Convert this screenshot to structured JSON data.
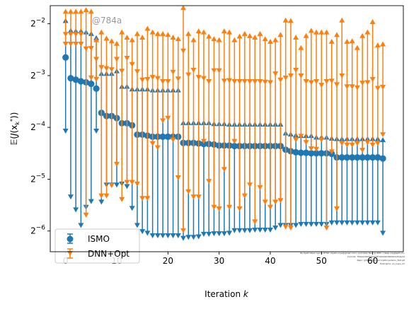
{
  "chart_data": {
    "type": "errorbar",
    "title": "",
    "xlabel": "Iteration k",
    "ylabel": "E(J(x_k*))",
    "xlim": [
      -3,
      66
    ],
    "ylog2_range": [
      -6.4,
      -1.65
    ],
    "xticks": [
      0,
      10,
      20,
      30,
      40,
      50,
      60
    ],
    "yticks": [
      {
        "exp": -2,
        "base": "2",
        "power": "−2"
      },
      {
        "exp": -3,
        "base": "2",
        "power": "−3"
      },
      {
        "exp": -4,
        "base": "2",
        "power": "−4"
      },
      {
        "exp": -5,
        "base": "2",
        "power": "−5"
      },
      {
        "exp": -6,
        "base": "2",
        "power": "−6"
      }
    ],
    "grid": false,
    "legend_position": "lower-left",
    "annotation": "@784a",
    "credit_lines": [
      "By Kjetil Olsen Lye @ ETHZ <kjetil.o.lye@gmail.com> and Ozzy Mog @ EPFL <deep.ozy@epfl.ch>",
      "Commit: 784ae18074814d3f72b3a9d39b667a7b4e4d",
      "Repo: git@github.com:kjetil-lye/ismo_fast.git",
      "Hostname: eu_login_27"
    ],
    "series": [
      {
        "name": "ISMO",
        "color": "#1f77b4",
        "marker": "circle",
        "x": [
          0,
          1,
          2,
          3,
          4,
          5,
          6,
          7,
          8,
          9,
          10,
          11,
          12,
          13,
          14,
          15,
          16,
          17,
          18,
          19,
          20,
          21,
          22,
          23,
          24,
          25,
          26,
          27,
          28,
          29,
          30,
          31,
          32,
          33,
          34,
          35,
          36,
          37,
          38,
          39,
          40,
          41,
          42,
          43,
          44,
          45,
          46,
          47,
          48,
          49,
          50,
          51,
          52,
          53,
          54,
          55,
          56,
          57,
          58,
          59,
          60,
          61,
          62
        ],
        "mean_log2": [
          -2.65,
          -3.05,
          -3.08,
          -3.11,
          -3.13,
          -3.16,
          -3.25,
          -3.72,
          -3.78,
          -3.78,
          -3.82,
          -3.92,
          -3.92,
          -3.96,
          -4.14,
          -4.14,
          -4.16,
          -4.18,
          -4.18,
          -4.18,
          -4.18,
          -4.18,
          -4.18,
          -4.3,
          -4.3,
          -4.3,
          -4.31,
          -4.32,
          -4.32,
          -4.33,
          -4.35,
          -4.35,
          -4.35,
          -4.36,
          -4.36,
          -4.36,
          -4.36,
          -4.36,
          -4.36,
          -4.36,
          -4.36,
          -4.36,
          -4.36,
          -4.43,
          -4.46,
          -4.48,
          -4.49,
          -4.49,
          -4.5,
          -4.5,
          -4.5,
          -4.5,
          -4.51,
          -4.58,
          -4.58,
          -4.58,
          -4.58,
          -4.58,
          -4.58,
          -4.58,
          -4.58,
          -4.58,
          -4.6
        ],
        "upper_log2": [
          -1.93,
          -2.12,
          -2.13,
          -2.13,
          -2.15,
          -2.18,
          -2.26,
          -2.95,
          -2.95,
          -2.95,
          -2.9,
          -3.2,
          -3.2,
          -3.25,
          -3.25,
          -3.25,
          -3.25,
          -3.27,
          -3.27,
          -3.27,
          -3.27,
          -3.27,
          -3.27,
          -3.9,
          -3.9,
          -3.9,
          -3.9,
          -3.9,
          -3.9,
          -3.92,
          -3.92,
          -3.92,
          -3.93,
          -3.93,
          -3.93,
          -3.93,
          -3.93,
          -3.93,
          -3.93,
          -3.93,
          -3.93,
          -3.93,
          -3.93,
          -4.1,
          -4.12,
          -4.14,
          -4.15,
          -4.15,
          -4.15,
          -4.18,
          -4.18,
          -4.18,
          -4.2,
          -4.21,
          -4.21,
          -4.21,
          -4.21,
          -4.21,
          -4.21,
          -4.21,
          -4.21,
          -4.21,
          -4.23
        ],
        "lower_log2": [
          -4.08,
          -5.35,
          -5.6,
          -5.9,
          -5.55,
          -5.44,
          -4.08,
          -5.45,
          -5.12,
          -5.12,
          -5.12,
          -5.1,
          -5.15,
          -5.57,
          -5.9,
          -6.02,
          -6.05,
          -6.1,
          -6.1,
          -6.1,
          -6.1,
          -6.1,
          -6.1,
          -6.15,
          -6.13,
          -6.13,
          -6.12,
          -6.07,
          -6.07,
          -6.06,
          -6.06,
          -6.06,
          -6.05,
          -6.0,
          -6.0,
          -6.0,
          -6.0,
          -5.99,
          -5.99,
          -5.99,
          -5.99,
          -5.95,
          -5.9,
          -5.9,
          -5.9,
          -5.9,
          -5.88,
          -5.88,
          -5.88,
          -5.88,
          -5.88,
          -5.88,
          -5.85,
          -5.85,
          -5.85,
          -5.85,
          -5.85,
          -5.85,
          -5.85,
          -5.85,
          -5.85,
          -5.85,
          -6.05
        ]
      },
      {
        "name": "DNN+Opt",
        "color": "#ff7f0e",
        "marker": "triangle",
        "x": [
          0,
          1,
          2,
          3,
          4,
          5,
          6,
          7,
          8,
          9,
          10,
          11,
          12,
          13,
          14,
          15,
          16,
          17,
          18,
          19,
          20,
          21,
          22,
          23,
          24,
          25,
          26,
          27,
          28,
          29,
          30,
          31,
          32,
          33,
          34,
          35,
          36,
          37,
          38,
          39,
          40,
          41,
          42,
          43,
          44,
          45,
          46,
          47,
          48,
          49,
          50,
          51,
          52,
          53,
          54,
          55,
          56,
          57,
          58,
          59,
          60,
          61,
          62
        ],
        "upper_log2": [
          -1.75,
          -1.75,
          -1.75,
          -1.75,
          -1.72,
          -1.75,
          -2.3,
          -2.15,
          -2.27,
          -2.32,
          -2.37,
          -2.15,
          -2.25,
          -2.3,
          -2.18,
          -2.25,
          -2.08,
          -2.15,
          -2.18,
          -2.18,
          -2.2,
          -2.25,
          -2.28,
          -1.68,
          -2.18,
          -2.3,
          -2.13,
          -2.15,
          -2.23,
          -2.28,
          -2.3,
          -2.13,
          -2.15,
          -2.3,
          -2.23,
          -2.18,
          -2.22,
          -2.25,
          -2.18,
          -2.28,
          -2.33,
          -2.3,
          -2.2,
          -1.92,
          -1.93,
          -2.25,
          -2.45,
          -2.22,
          -2.12,
          -2.15,
          -2.15,
          -2.15,
          -2.33,
          -2.2,
          -1.92,
          -2.33,
          -2.32,
          -2.45,
          -2.22,
          -2.15,
          -1.95,
          -2.4,
          -2.38
        ],
        "mean_log2": [
          -2.2,
          -2.2,
          -2.2,
          -2.2,
          -2.48,
          -2.47,
          -2.68,
          -2.84,
          -2.86,
          -2.88,
          -2.68,
          -2.91,
          -2.66,
          -2.78,
          -2.92,
          -3.08,
          -3.07,
          -3.03,
          -3.05,
          -3.11,
          -3.11,
          -2.93,
          -3.06,
          -2.52,
          -2.98,
          -2.89,
          -3.03,
          -3.05,
          -3.11,
          -2.9,
          -2.9,
          -3.1,
          -3.09,
          -3.11,
          -3.11,
          -3.11,
          -3.11,
          -3.11,
          -3.11,
          -3.12,
          -3.13,
          -2.96,
          -3.08,
          -3.04,
          -3.0,
          -2.89,
          -3.0,
          -3.11,
          -3.13,
          -3.11,
          -3.18,
          -3.11,
          -3.1,
          -3.17,
          -3.0,
          -3.21,
          -3.21,
          -3.23,
          -3.14,
          -3.13,
          -3.07,
          -3.24,
          -3.22
        ],
        "lower_log2": [
          -2.4,
          -2.4,
          -2.4,
          -2.4,
          -5.7,
          -3.05,
          -3.08,
          -5.33,
          -5.33,
          -5.13,
          -4.72,
          -5.4,
          -5.07,
          -5.07,
          -5.1,
          -5.38,
          -5.38,
          -4.32,
          -4.4,
          -3.88,
          -3.83,
          -4.25,
          -4.98,
          -6.0,
          -5.25,
          -5.35,
          -5.35,
          -4.28,
          -5.05,
          -5.55,
          -5.58,
          -4.82,
          -5.55,
          -4.28,
          -5.58,
          -5.33,
          -5.12,
          -5.83,
          -5.17,
          -5.45,
          -5.55,
          -5.45,
          -5.42,
          -5.93,
          -5.95,
          -4.25,
          -4.18,
          -4.3,
          -4.42,
          -4.43,
          -4.25,
          -5.95,
          -4.48,
          -5.58,
          -4.32,
          -4.35,
          -4.35,
          -4.32,
          -4.45,
          -4.3,
          -4.35,
          -4.32,
          -4.15
        ]
      }
    ]
  }
}
